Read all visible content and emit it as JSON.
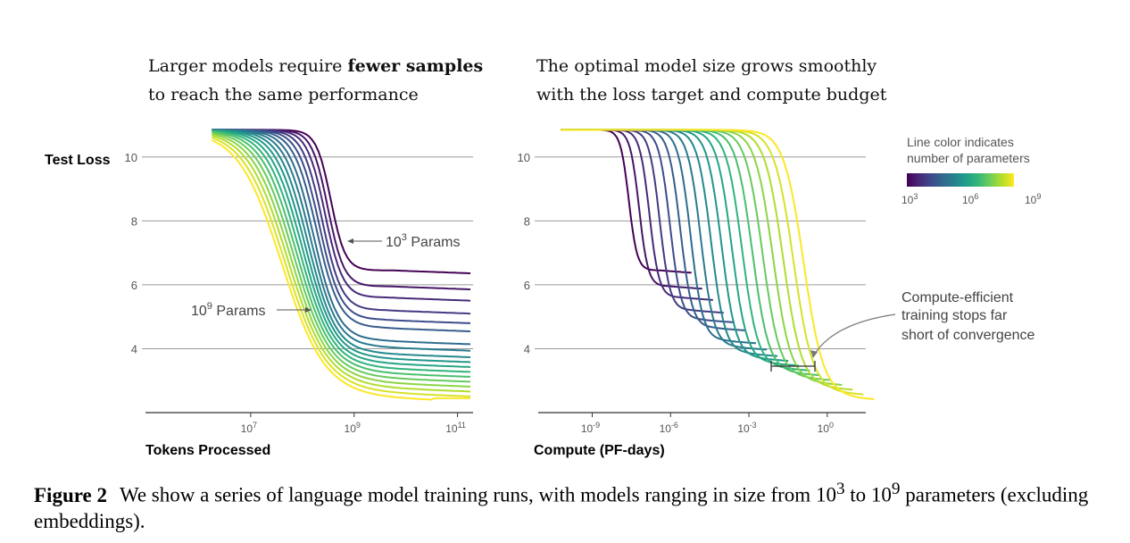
{
  "colors": {
    "grid": "#9a9a9a",
    "axis": "#333333",
    "viridis": [
      "#440154",
      "#482878",
      "#3e4989",
      "#31688e",
      "#26828e",
      "#1f9e89",
      "#35b779",
      "#6ece58",
      "#b5de2b",
      "#fde725"
    ]
  },
  "colorbar": {
    "title_line1": "Line color indicates",
    "title_line2": "number of parameters",
    "ticks": [
      {
        "base": "10",
        "exp": "3"
      },
      {
        "base": "10",
        "exp": "6"
      },
      {
        "base": "10",
        "exp": "9"
      }
    ]
  },
  "chart_data": [
    {
      "type": "line",
      "title_line1_plain": "Larger models require ",
      "title_line1_bold": "fewer samples",
      "title_line2": "to reach the same performance",
      "ylabel": "Test Loss",
      "xlabel": "Tokens Processed",
      "xscale": "log",
      "xlim": [
        100000.0,
        200000000000.0
      ],
      "ylim": [
        2,
        11
      ],
      "yticks": [
        "10",
        "8",
        "6",
        "4"
      ],
      "yticks_values": [
        10,
        8,
        6,
        4
      ],
      "xticks": [
        {
          "base": "10",
          "exp": "7",
          "value": 10000000.0
        },
        {
          "base": "10",
          "exp": "9",
          "value": 1000000000.0
        },
        {
          "base": "10",
          "exp": "11",
          "value": 100000000000.0
        }
      ],
      "annotations": [
        {
          "base": "10",
          "exp": "3",
          "text": " Params"
        },
        {
          "base": "10",
          "exp": "9",
          "text": " Params"
        }
      ],
      "series_count": 18,
      "series_params_log10": [
        3.0,
        3.35,
        3.7,
        4.05,
        4.4,
        4.75,
        5.1,
        5.45,
        5.8,
        6.15,
        6.5,
        6.85,
        7.2,
        7.55,
        7.9,
        8.25,
        8.6,
        9.0
      ],
      "series_final_loss": [
        6.45,
        5.95,
        5.6,
        5.2,
        4.9,
        4.65,
        4.25,
        4.05,
        3.85,
        3.7,
        3.55,
        3.4,
        3.25,
        3.1,
        2.95,
        2.8,
        2.65,
        2.5
      ],
      "start_loss": 10.85
    },
    {
      "type": "line",
      "title_line1": "The optimal model size grows smoothly",
      "title_line2": "with the loss target and compute budget",
      "xlabel": "Compute (PF-days)",
      "xscale": "log",
      "xlim": [
        1e-11,
        30
      ],
      "ylim": [
        2,
        11
      ],
      "yticks": [
        "10",
        "8",
        "6",
        "4"
      ],
      "yticks_values": [
        10,
        8,
        6,
        4
      ],
      "xticks": [
        {
          "base": "10",
          "exp": "-9",
          "value": 1e-09
        },
        {
          "base": "10",
          "exp": "-6",
          "value": 1e-06
        },
        {
          "base": "10",
          "exp": "-3",
          "value": 0.001
        },
        {
          "base": "10",
          "exp": "0",
          "value": 1
        }
      ],
      "annotation_lines": [
        "Compute-efficient",
        "training stops far",
        "short of convergence"
      ],
      "series_count": 18,
      "series_params_log10": [
        3.0,
        3.35,
        3.7,
        4.05,
        4.4,
        4.75,
        5.1,
        5.45,
        5.8,
        6.15,
        6.5,
        6.85,
        7.2,
        7.55,
        7.9,
        8.25,
        8.6,
        9.0
      ],
      "series_final_loss": [
        6.45,
        5.95,
        5.6,
        5.2,
        4.9,
        4.65,
        4.25,
        4.05,
        3.85,
        3.7,
        3.55,
        3.4,
        3.25,
        3.1,
        2.95,
        2.8,
        2.65,
        2.5
      ],
      "start_loss": 10.85
    }
  ],
  "caption": {
    "label": "Figure 2",
    "text_before": "We show a series of language model training runs, with models ranging in size from 10",
    "exp1": "3",
    "text_mid": " to 10",
    "exp2": "9",
    "text_after": " parameters (excluding embeddings)."
  }
}
